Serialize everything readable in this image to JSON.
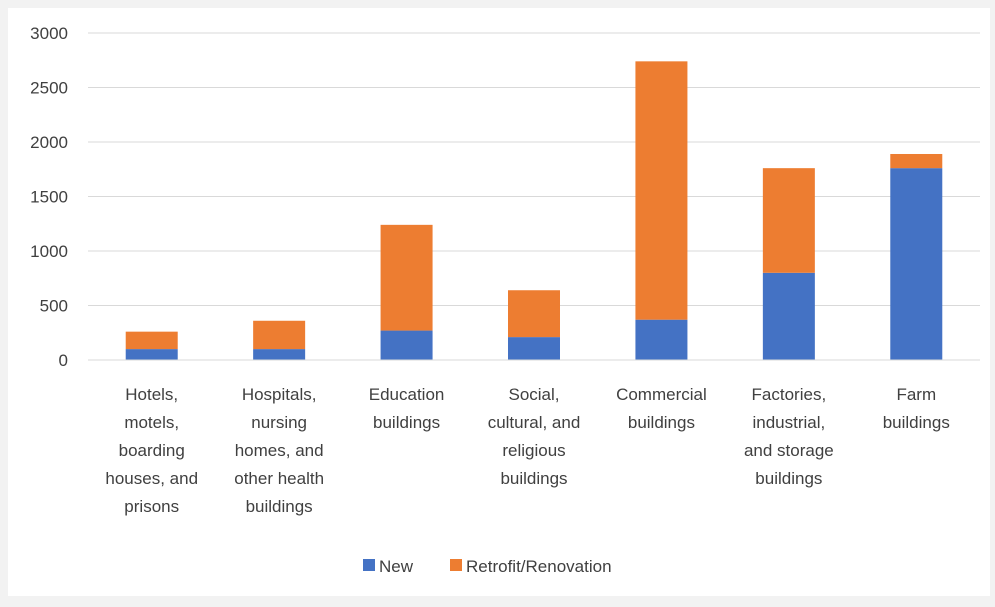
{
  "chart_data": {
    "type": "bar",
    "stacked": true,
    "categories": [
      [
        "Hotels,",
        "motels,",
        "boarding",
        "houses, and",
        "prisons"
      ],
      [
        "Hospitals,",
        "nursing",
        "homes, and",
        "other health",
        "buildings"
      ],
      [
        "Education",
        "buildings"
      ],
      [
        "Social,",
        "cultural, and",
        "religious",
        "buildings"
      ],
      [
        "Commercial",
        "buildings"
      ],
      [
        "Factories,",
        "industrial,",
        "and storage",
        "buildings"
      ],
      [
        "Farm",
        "buildings"
      ]
    ],
    "series": [
      {
        "name": "New",
        "color": "#4472c4",
        "values": [
          100,
          100,
          270,
          210,
          370,
          800,
          1760
        ]
      },
      {
        "name": "Retrofit/Renovation",
        "color": "#ed7d31",
        "values": [
          160,
          260,
          970,
          430,
          2370,
          960,
          130
        ]
      }
    ],
    "ylim": [
      0,
      3000
    ],
    "yticks": [
      "0",
      "500",
      "1000",
      "1500",
      "2000",
      "2500",
      "3000"
    ],
    "grid": true,
    "legend_position": "bottom",
    "title": "",
    "xlabel": "",
    "ylabel": ""
  }
}
